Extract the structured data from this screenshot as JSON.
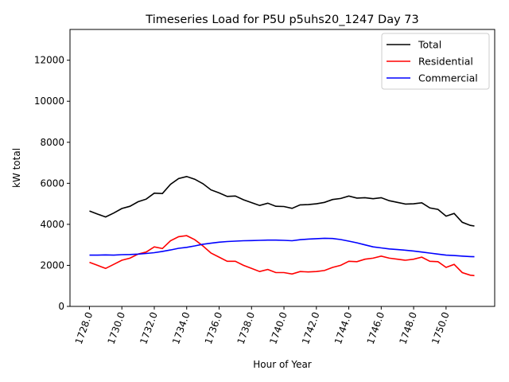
{
  "chart_data": {
    "type": "line",
    "title": "Timeseries Load for P5U p5uhs20_1247  Day 73",
    "xlabel": "Hour of Year",
    "ylabel": "kW total",
    "xlim": [
      1726.8,
      1753.0
    ],
    "ylim": [
      0,
      13500
    ],
    "xticks": [
      1728,
      1730,
      1732,
      1734,
      1736,
      1738,
      1740,
      1742,
      1744,
      1746,
      1748,
      1750
    ],
    "xtick_labels": [
      "1728.0",
      "1730.0",
      "1732.0",
      "1734.0",
      "1736.0",
      "1738.0",
      "1740.0",
      "1742.0",
      "1744.0",
      "1746.0",
      "1748.0",
      "1750.0"
    ],
    "yticks": [
      0,
      2000,
      4000,
      6000,
      8000,
      10000,
      12000
    ],
    "ytick_labels": [
      "0",
      "2000",
      "4000",
      "6000",
      "8000",
      "10000",
      "12000"
    ],
    "grid": false,
    "legend_position": "top-right",
    "x": [
      1728,
      1728.5,
      1729,
      1729.5,
      1730,
      1730.5,
      1731,
      1731.5,
      1732,
      1732.5,
      1733,
      1733.5,
      1734,
      1734.5,
      1735,
      1735.5,
      1736,
      1736.5,
      1737,
      1737.5,
      1738,
      1738.5,
      1739,
      1739.5,
      1740,
      1740.5,
      1741,
      1741.5,
      1742,
      1742.5,
      1743,
      1743.5,
      1744,
      1744.5,
      1745,
      1745.5,
      1746,
      1746.5,
      1747,
      1747.5,
      1748,
      1748.5,
      1749,
      1749.5,
      1750,
      1750.5,
      1751,
      1751.5,
      1751.75
    ],
    "series": [
      {
        "name": "Total",
        "color": "#000000",
        "values": [
          4650,
          4500,
          4360,
          4550,
          4770,
          4880,
          5100,
          5230,
          5520,
          5500,
          5950,
          6230,
          6330,
          6200,
          5980,
          5680,
          5530,
          5360,
          5380,
          5200,
          5060,
          4920,
          5030,
          4880,
          4870,
          4780,
          4950,
          4960,
          5000,
          5070,
          5210,
          5260,
          5380,
          5280,
          5300,
          5250,
          5300,
          5150,
          5070,
          4990,
          5000,
          5050,
          4800,
          4730,
          4400,
          4530,
          4100,
          3950,
          3920
        ]
      },
      {
        "name": "Residential",
        "color": "#ff0000",
        "values": [
          2150,
          2000,
          1850,
          2050,
          2250,
          2350,
          2550,
          2650,
          2900,
          2820,
          3200,
          3400,
          3450,
          3250,
          2950,
          2600,
          2400,
          2200,
          2200,
          2000,
          1850,
          1700,
          1800,
          1650,
          1650,
          1580,
          1700,
          1680,
          1700,
          1750,
          1900,
          2000,
          2200,
          2180,
          2300,
          2350,
          2450,
          2350,
          2300,
          2250,
          2300,
          2400,
          2200,
          2180,
          1900,
          2050,
          1650,
          1520,
          1500
        ]
      },
      {
        "name": "Commercial",
        "color": "#0000ff",
        "values": [
          2500,
          2500,
          2510,
          2500,
          2520,
          2530,
          2550,
          2580,
          2620,
          2680,
          2750,
          2830,
          2880,
          2950,
          3030,
          3080,
          3130,
          3160,
          3180,
          3200,
          3210,
          3220,
          3230,
          3230,
          3220,
          3200,
          3250,
          3280,
          3300,
          3320,
          3310,
          3260,
          3180,
          3100,
          3000,
          2900,
          2850,
          2800,
          2770,
          2740,
          2700,
          2650,
          2600,
          2550,
          2500,
          2480,
          2450,
          2430,
          2420
        ]
      }
    ]
  }
}
